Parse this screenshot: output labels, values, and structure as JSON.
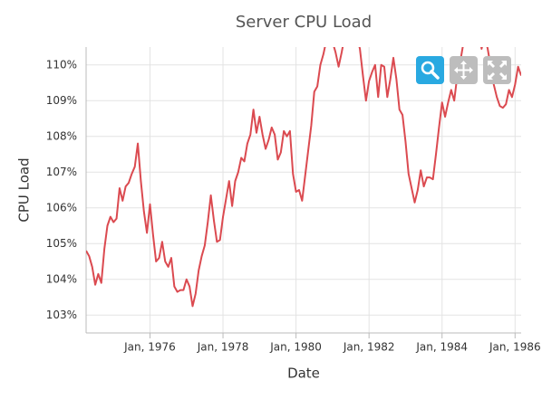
{
  "chart_data": {
    "type": "line",
    "title": "Server CPU Load",
    "x_label": "Date",
    "y_label": "CPU Load",
    "grid": true,
    "x": [
      "1974-04",
      "1974-05",
      "1974-06",
      "1974-07",
      "1974-08",
      "1974-09",
      "1974-10",
      "1974-11",
      "1974-12",
      "1975-01",
      "1975-02",
      "1975-03",
      "1975-04",
      "1975-05",
      "1975-06",
      "1975-07",
      "1975-08",
      "1975-09",
      "1975-10",
      "1975-11",
      "1975-12",
      "1976-01",
      "1976-02",
      "1976-03",
      "1976-04",
      "1976-05",
      "1976-06",
      "1976-07",
      "1976-08",
      "1976-09",
      "1976-10",
      "1976-11",
      "1976-12",
      "1977-01",
      "1977-02",
      "1977-03",
      "1977-04",
      "1977-05",
      "1977-06",
      "1977-07",
      "1977-08",
      "1977-09",
      "1977-10",
      "1977-11",
      "1977-12",
      "1978-01",
      "1978-02",
      "1978-03",
      "1978-04",
      "1978-05",
      "1978-06",
      "1978-07",
      "1978-08",
      "1978-09",
      "1978-10",
      "1978-11",
      "1978-12",
      "1979-01",
      "1979-02",
      "1979-03",
      "1979-04",
      "1979-05",
      "1979-06",
      "1979-07",
      "1979-08",
      "1979-09",
      "1979-10",
      "1979-11",
      "1979-12",
      "1980-01",
      "1980-02",
      "1980-03",
      "1980-04",
      "1980-05",
      "1980-06",
      "1980-07",
      "1980-08",
      "1980-09",
      "1980-10",
      "1980-11",
      "1980-12",
      "1981-01",
      "1981-02",
      "1981-03",
      "1981-04",
      "1981-05",
      "1981-06",
      "1981-07",
      "1981-08",
      "1981-09",
      "1981-10",
      "1981-11",
      "1981-12",
      "1982-01",
      "1982-02",
      "1982-03",
      "1982-04",
      "1982-05",
      "1982-06",
      "1982-07",
      "1982-08",
      "1982-09",
      "1982-10",
      "1982-11",
      "1982-12",
      "1983-01",
      "1983-02",
      "1983-03",
      "1983-04",
      "1983-05",
      "1983-06",
      "1983-07",
      "1983-08",
      "1983-09",
      "1983-10",
      "1983-11",
      "1983-12",
      "1984-01",
      "1984-02",
      "1984-03",
      "1984-04",
      "1984-05",
      "1984-06",
      "1984-07",
      "1984-08",
      "1984-09",
      "1984-10",
      "1984-11",
      "1984-12",
      "1985-01",
      "1985-02",
      "1985-03",
      "1985-04",
      "1985-05",
      "1985-06",
      "1985-07",
      "1985-08",
      "1985-09",
      "1985-10",
      "1985-11",
      "1985-12",
      "1986-01",
      "1986-02",
      "1986-03"
    ],
    "series": [
      {
        "name": "CPU Load",
        "color": "#db4a50",
        "values": [
          104.8,
          104.65,
          104.35,
          103.85,
          104.15,
          103.9,
          104.85,
          105.5,
          105.75,
          105.6,
          105.7,
          106.55,
          106.2,
          106.6,
          106.7,
          106.95,
          107.15,
          107.8,
          106.75,
          105.9,
          105.3,
          106.1,
          105.25,
          104.5,
          104.6,
          105.05,
          104.5,
          104.35,
          104.6,
          103.8,
          103.65,
          103.7,
          103.7,
          104.0,
          103.8,
          103.25,
          103.6,
          104.25,
          104.65,
          104.95,
          105.6,
          106.35,
          105.65,
          105.05,
          105.1,
          105.75,
          106.25,
          106.75,
          106.05,
          106.75,
          107.0,
          107.4,
          107.3,
          107.8,
          108.05,
          108.75,
          108.1,
          108.55,
          108.05,
          107.65,
          107.9,
          108.25,
          108.05,
          107.35,
          107.55,
          108.15,
          108.0,
          108.15,
          106.95,
          106.45,
          106.5,
          106.2,
          106.9,
          107.6,
          108.3,
          109.25,
          109.4,
          110.0,
          110.3,
          110.7,
          110.95,
          110.65,
          110.35,
          109.95,
          110.35,
          110.8,
          111.05,
          110.85,
          110.9,
          110.8,
          110.45,
          109.7,
          109.0,
          109.55,
          109.8,
          110.0,
          109.1,
          110.0,
          109.95,
          109.1,
          109.6,
          110.2,
          109.6,
          108.75,
          108.6,
          107.85,
          106.95,
          106.55,
          106.15,
          106.5,
          107.05,
          106.6,
          106.85,
          106.85,
          106.8,
          107.5,
          108.25,
          108.95,
          108.55,
          108.95,
          109.3,
          109.0,
          109.7,
          110.1,
          110.6,
          110.95,
          111.05,
          110.75,
          110.95,
          111.05,
          110.45,
          110.85,
          110.45,
          109.95,
          109.45,
          109.1,
          108.85,
          108.8,
          108.9,
          109.3,
          109.1,
          109.45,
          109.95,
          109.7
        ]
      }
    ],
    "xlim": [
      "1974-04",
      "1986-03"
    ],
    "xticks": [
      {
        "value": "1976-01",
        "label": "Jan, 1976"
      },
      {
        "value": "1978-01",
        "label": "Jan, 1978"
      },
      {
        "value": "1980-01",
        "label": "Jan, 1980"
      },
      {
        "value": "1982-01",
        "label": "Jan, 1982"
      },
      {
        "value": "1984-01",
        "label": "Jan, 1984"
      },
      {
        "value": "1986-01",
        "label": "Jan, 1986"
      }
    ],
    "ylim": [
      102.5,
      110.5
    ],
    "yticks": [
      {
        "value": 103,
        "label": "103%"
      },
      {
        "value": 104,
        "label": "104%"
      },
      {
        "value": 105,
        "label": "105%"
      },
      {
        "value": 106,
        "label": "106%"
      },
      {
        "value": 107,
        "label": "107%"
      },
      {
        "value": 108,
        "label": "108%"
      },
      {
        "value": 109,
        "label": "109%"
      },
      {
        "value": 110,
        "label": "110%"
      }
    ]
  }
}
